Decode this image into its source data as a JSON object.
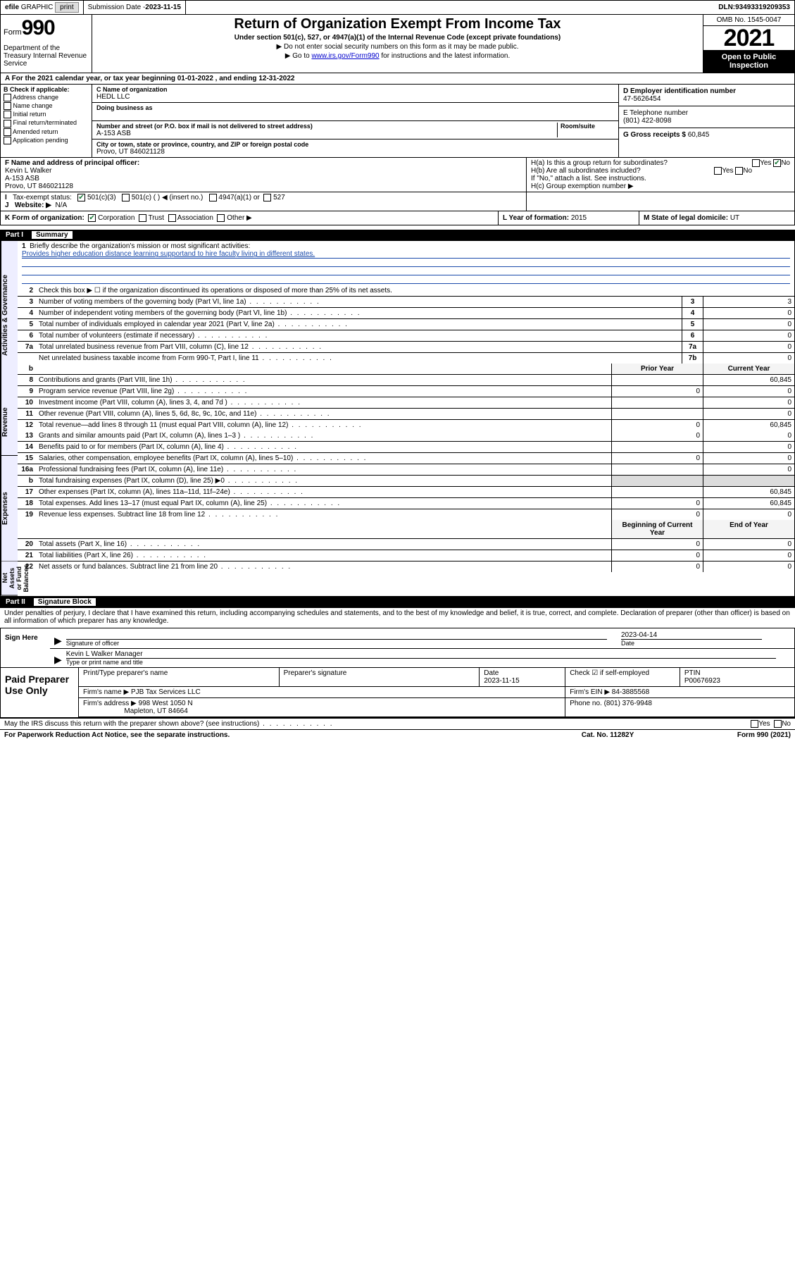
{
  "topbar": {
    "efile": "efile GRAPHIC print",
    "sub_lbl": "Submission Date - ",
    "sub_date": "2023-11-15",
    "dln_lbl": "DLN: ",
    "dln": "93493319209353"
  },
  "header": {
    "form_word": "Form",
    "form_num": "990",
    "dept": "Department of the Treasury Internal Revenue Service",
    "title": "Return of Organization Exempt From Income Tax",
    "subtitle": "Under section 501(c), 527, or 4947(a)(1) of the Internal Revenue Code (except private foundations)",
    "note1": "▶ Do not enter social security numbers on this form as it may be made public.",
    "note2_pre": "▶ Go to ",
    "note2_link": "www.irs.gov/Form990",
    "note2_post": " for instructions and the latest information.",
    "omb": "OMB No. 1545-0047",
    "year": "2021",
    "open1": "Open to Public",
    "open2": "Inspection"
  },
  "rowA": "A For the 2021 calendar year, or tax year beginning 01-01-2022  , and ending 12-31-2022",
  "colB": {
    "hd": "B Check if applicable:",
    "opts": [
      "Address change",
      "Name change",
      "Initial return",
      "Final return/terminated",
      "Amended return",
      "Application pending"
    ]
  },
  "colC": {
    "name_lbl": "C Name of organization",
    "name": "HEDL LLC",
    "dba_lbl": "Doing business as",
    "addr_lbl": "Number and street (or P.O. box if mail is not delivered to street address)",
    "room_lbl": "Room/suite",
    "addr": "A-153 ASB",
    "city_lbl": "City or town, state or province, country, and ZIP or foreign postal code",
    "city": "Provo, UT  846021128"
  },
  "colD": {
    "ein_lbl": "D Employer identification number",
    "ein": "47-5626454",
    "tel_lbl": "E Telephone number",
    "tel": "(801) 422-8098",
    "gross_lbl": "G Gross receipts $ ",
    "gross": "60,845"
  },
  "rowF": {
    "lbl": "F Name and address of principal officer:",
    "name": "Kevin L Walker",
    "addr1": "A-153 ASB",
    "addr2": "Provo, UT  846021128"
  },
  "rowH": {
    "ha": "H(a)  Is this a group return for subordinates?",
    "hb": "H(b)  Are all subordinates included?",
    "hb_note": "If \"No,\" attach a list. See instructions.",
    "hc": "H(c)  Group exemption number ▶",
    "yes": "Yes",
    "no": "No"
  },
  "rowI": {
    "lbl": "Tax-exempt status:",
    "o1": "501(c)(3)",
    "o2": "501(c) (  ) ◀ (insert no.)",
    "o3": "4947(a)(1) or",
    "o4": "527"
  },
  "rowJ": {
    "lbl": "Website: ▶",
    "val": "N/A"
  },
  "rowK": {
    "lbl": "K Form of organization:",
    "o1": "Corporation",
    "o2": "Trust",
    "o3": "Association",
    "o4": "Other ▶",
    "l_lbl": "L Year of formation: ",
    "l_val": "2015",
    "m_lbl": "M State of legal domicile: ",
    "m_val": "UT"
  },
  "part1": {
    "part_no": "Part I",
    "part_title": "Summary",
    "side_ag": "Activities & Governance",
    "side_rev": "Revenue",
    "side_exp": "Expenses",
    "side_na": "Net Assets or\nFund Balances",
    "l1": "Briefly describe the organization's mission or most significant activities:",
    "l1_val": "Provides higher education distance learning supportand to hire faculty living in different states.",
    "l2": "Check this box ▶ ☐  if the organization discontinued its operations or disposed of more than 25% of its net assets.",
    "rows_ag": [
      {
        "n": "3",
        "d": "Number of voting members of the governing body (Part VI, line 1a)",
        "m": "3",
        "v": "3"
      },
      {
        "n": "4",
        "d": "Number of independent voting members of the governing body (Part VI, line 1b)",
        "m": "4",
        "v": "0"
      },
      {
        "n": "5",
        "d": "Total number of individuals employed in calendar year 2021 (Part V, line 2a)",
        "m": "5",
        "v": "0"
      },
      {
        "n": "6",
        "d": "Total number of volunteers (estimate if necessary)",
        "m": "6",
        "v": "0"
      },
      {
        "n": "7a",
        "d": "Total unrelated business revenue from Part VIII, column (C), line 12",
        "m": "7a",
        "v": "0"
      },
      {
        "n": "",
        "d": "Net unrelated business taxable income from Form 990-T, Part I, line 11",
        "m": "7b",
        "v": "0"
      }
    ],
    "col_hdr": {
      "nb": "b",
      "prior": "Prior Year",
      "curr": "Current Year"
    },
    "rows_rev": [
      {
        "n": "8",
        "d": "Contributions and grants (Part VIII, line 1h)",
        "p": "",
        "c": "60,845"
      },
      {
        "n": "9",
        "d": "Program service revenue (Part VIII, line 2g)",
        "p": "0",
        "c": "0"
      },
      {
        "n": "10",
        "d": "Investment income (Part VIII, column (A), lines 3, 4, and 7d )",
        "p": "",
        "c": "0"
      },
      {
        "n": "11",
        "d": "Other revenue (Part VIII, column (A), lines 5, 6d, 8c, 9c, 10c, and 11e)",
        "p": "",
        "c": "0"
      },
      {
        "n": "12",
        "d": "Total revenue—add lines 8 through 11 (must equal Part VIII, column (A), line 12)",
        "p": "0",
        "c": "60,845"
      }
    ],
    "rows_exp": [
      {
        "n": "13",
        "d": "Grants and similar amounts paid (Part IX, column (A), lines 1–3 )",
        "p": "0",
        "c": "0"
      },
      {
        "n": "14",
        "d": "Benefits paid to or for members (Part IX, column (A), line 4)",
        "p": "",
        "c": "0"
      },
      {
        "n": "15",
        "d": "Salaries, other compensation, employee benefits (Part IX, column (A), lines 5–10)",
        "p": "0",
        "c": "0"
      },
      {
        "n": "16a",
        "d": "Professional fundraising fees (Part IX, column (A), line 11e)",
        "p": "",
        "c": "0"
      },
      {
        "n": "b",
        "d": "Total fundraising expenses (Part IX, column (D), line 25) ▶0",
        "p": "—",
        "c": "—",
        "gray": true
      },
      {
        "n": "17",
        "d": "Other expenses (Part IX, column (A), lines 11a–11d, 11f–24e)",
        "p": "",
        "c": "60,845"
      },
      {
        "n": "18",
        "d": "Total expenses. Add lines 13–17 (must equal Part IX, column (A), line 25)",
        "p": "0",
        "c": "60,845"
      },
      {
        "n": "19",
        "d": "Revenue less expenses. Subtract line 18 from line 12",
        "p": "0",
        "c": "0"
      }
    ],
    "na_hdr": {
      "b": "Beginning of Current Year",
      "e": "End of Year"
    },
    "rows_na": [
      {
        "n": "20",
        "d": "Total assets (Part X, line 16)",
        "p": "0",
        "c": "0"
      },
      {
        "n": "21",
        "d": "Total liabilities (Part X, line 26)",
        "p": "0",
        "c": "0"
      },
      {
        "n": "22",
        "d": "Net assets or fund balances. Subtract line 21 from line 20",
        "p": "0",
        "c": "0"
      }
    ]
  },
  "part2": {
    "part_no": "Part II",
    "part_title": "Signature Block",
    "declare": "Under penalties of perjury, I declare that I have examined this return, including accompanying schedules and statements, and to the best of my knowledge and belief, it is true, correct, and complete. Declaration of preparer (other than officer) is based on all information of which preparer has any knowledge.",
    "sign_here": "Sign Here",
    "sig_officer_lbl": "Signature of officer",
    "sig_date": "2023-04-14",
    "date_lbl": "Date",
    "name_title": "Kevin L Walker  Manager",
    "name_title_lbl": "Type or print name and title",
    "paid": "Paid Preparer Use Only",
    "pp_name_lbl": "Print/Type preparer's name",
    "pp_sig_lbl": "Preparer's signature",
    "pp_date_lbl": "Date",
    "pp_date": "2023-11-15",
    "pp_check_lbl": "Check ☑ if self-employed",
    "ptin_lbl": "PTIN",
    "ptin": "P00676923",
    "firm_name_lbl": "Firm's name    ▶ ",
    "firm_name": "PJB Tax Services LLC",
    "firm_ein_lbl": "Firm's EIN ▶ ",
    "firm_ein": "84-3885568",
    "firm_addr_lbl": "Firm's address ▶ ",
    "firm_addr1": "998 West 1050 N",
    "firm_addr2": "Mapleton, UT  84664",
    "phone_lbl": "Phone no. ",
    "phone": "(801) 376-9948",
    "may_irs": "May the IRS discuss this return with the preparer shown above? (see instructions)",
    "footer1": "For Paperwork Reduction Act Notice, see the separate instructions.",
    "footer2": "Cat. No. 11282Y",
    "footer3": "Form 990 (2021)"
  }
}
